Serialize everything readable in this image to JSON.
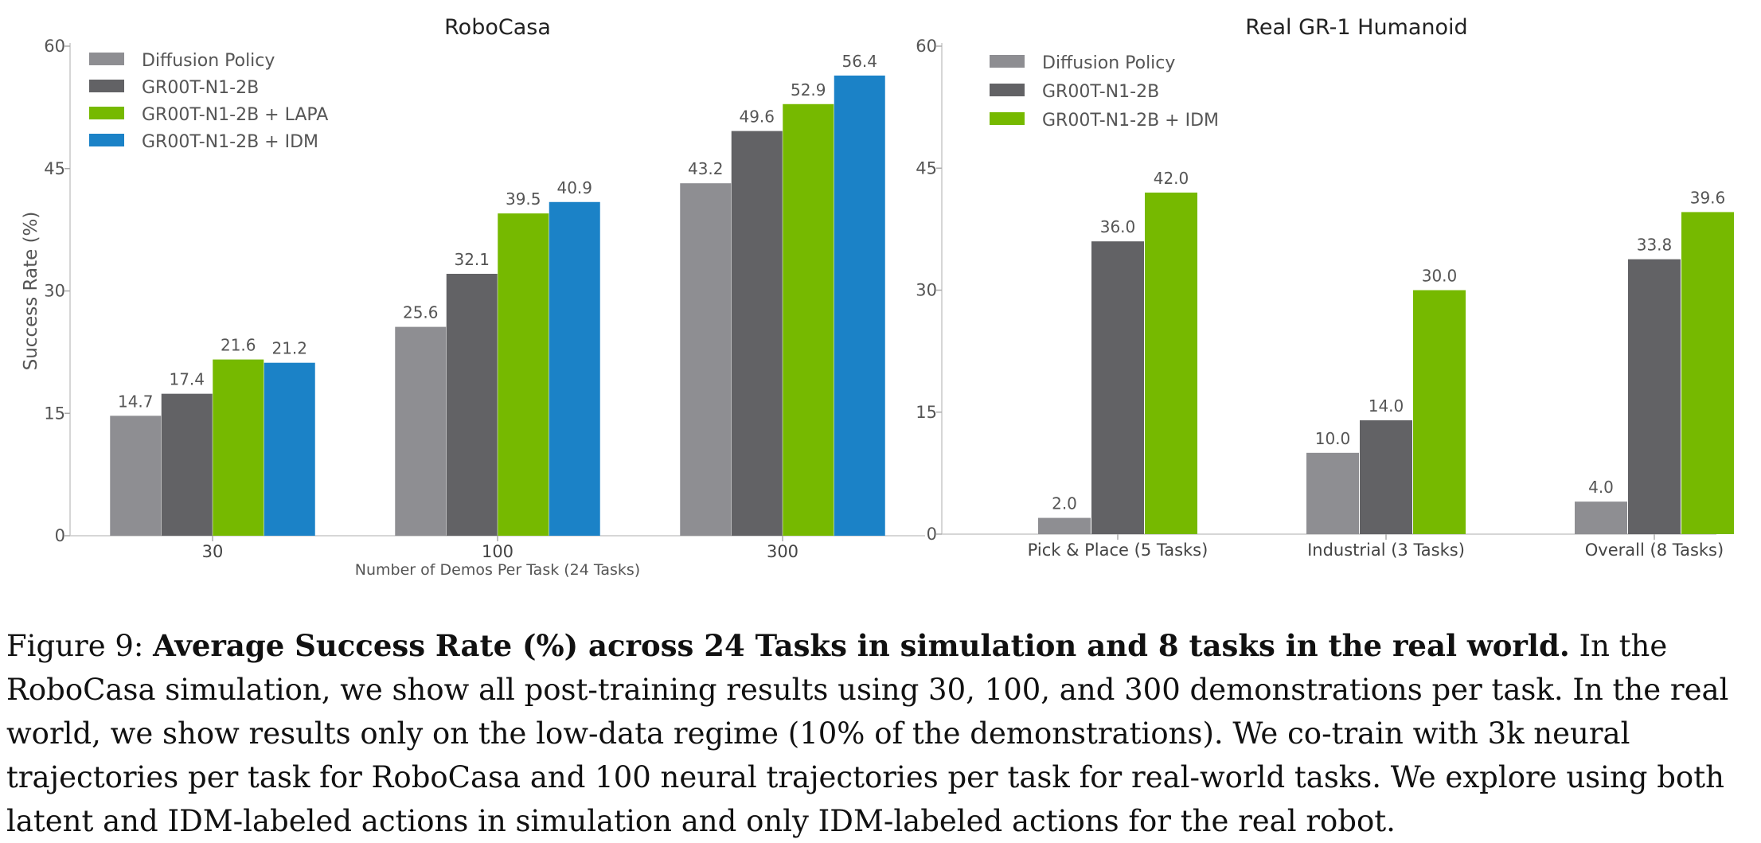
{
  "chart_data": [
    {
      "type": "bar",
      "title": "RoboCasa",
      "xlabel": "Number of Demos Per Task (24 Tasks)",
      "ylabel": "Success Rate (%)",
      "ylim": [
        0,
        60
      ],
      "yticks": [
        "0",
        "15",
        "30",
        "45",
        "60"
      ],
      "categories": [
        "30",
        "100",
        "300"
      ],
      "legend_position": "top-left",
      "series": [
        {
          "name": "Diffusion Policy",
          "color": "#8e8e92",
          "values": [
            14.7,
            25.6,
            43.2
          ],
          "labels": [
            "14.7",
            "25.6",
            "43.2"
          ]
        },
        {
          "name": "GR00T-N1-2B",
          "color": "#626265",
          "values": [
            17.4,
            32.1,
            49.6
          ],
          "labels": [
            "17.4",
            "32.1",
            "49.6"
          ]
        },
        {
          "name": "GR00T-N1-2B + LAPA",
          "color": "#76b900",
          "values": [
            21.6,
            39.5,
            52.9
          ],
          "labels": [
            "21.6",
            "39.5",
            "52.9"
          ]
        },
        {
          "name": "GR00T-N1-2B + IDM",
          "color": "#1b82c7",
          "values": [
            21.2,
            40.9,
            56.4
          ],
          "labels": [
            "21.2",
            "40.9",
            "56.4"
          ]
        }
      ]
    },
    {
      "type": "bar",
      "title": "Real GR-1 Humanoid",
      "xlabel": "",
      "ylabel": "",
      "ylim": [
        0,
        60
      ],
      "yticks": [
        "0",
        "15",
        "30",
        "45",
        "60"
      ],
      "categories": [
        "Pick & Place (5 Tasks)",
        "Industrial (3 Tasks)",
        "Overall (8 Tasks)"
      ],
      "legend_position": "top-left",
      "series": [
        {
          "name": "Diffusion Policy",
          "color": "#8e8e92",
          "values": [
            2.0,
            10.0,
            4.0
          ],
          "labels": [
            "2.0",
            "10.0",
            "4.0"
          ]
        },
        {
          "name": "GR00T-N1-2B",
          "color": "#626265",
          "values": [
            36.0,
            14.0,
            33.8
          ],
          "labels": [
            "36.0",
            "14.0",
            "33.8"
          ]
        },
        {
          "name": "GR00T-N1-2B + IDM",
          "color": "#76b900",
          "values": [
            42.0,
            30.0,
            39.6
          ],
          "labels": [
            "42.0",
            "30.0",
            "39.6"
          ]
        }
      ]
    }
  ],
  "caption": {
    "prefix": "Figure 9: ",
    "bold": "Average Success Rate (%) across 24 Tasks in simulation and 8 tasks in the real world.",
    "body": " In the RoboCasa simulation, we show all post-training results using 30, 100, and 300 demonstrations per task. In the real world, we show results only on the low-data regime (10% of the demonstrations). We co-train with 3k neural trajectories per task for RoboCasa and 100 neural trajectories per task for real-world tasks. We explore using both latent and IDM-labeled actions in simulation and only IDM-labeled actions for the real robot."
  }
}
